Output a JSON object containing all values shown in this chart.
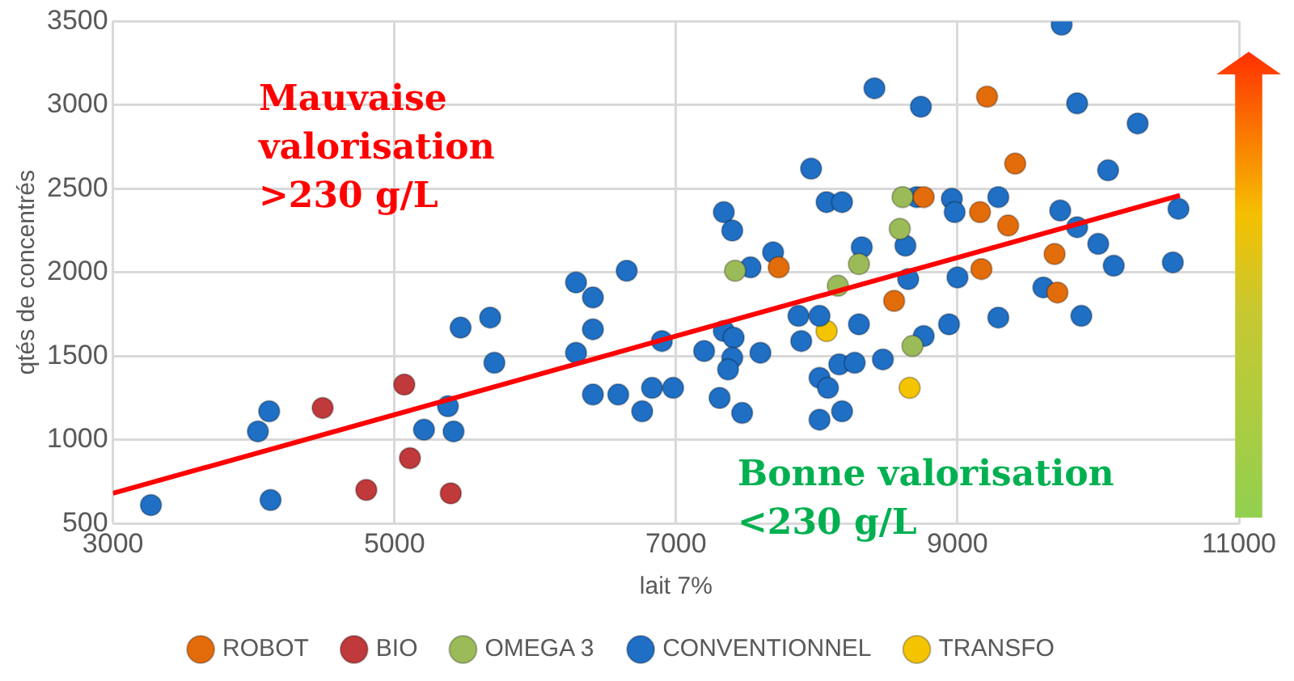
{
  "chart_data": {
    "type": "scatter",
    "xlabel": "lait 7%",
    "ylabel": "qtés de concentrés",
    "xlim": [
      3000,
      11000
    ],
    "xticks": [
      3000,
      5000,
      7000,
      9000,
      11000
    ],
    "ylim": [
      500,
      3500
    ],
    "yticks": [
      500,
      1000,
      1500,
      2000,
      2500,
      3000,
      3500
    ],
    "grid": true,
    "legend": "bottom",
    "marker": "circle",
    "annotations": [
      "Mauvaise\nvalorisation\n>230 g/L",
      "Bonne valorisation\n<230 g/L"
    ],
    "series": [
      {
        "name": "ROBOT",
        "color": "#e36c0a",
        "x": [
          9210,
          9410,
          8760,
          9160,
          9360,
          9690,
          9170,
          7730,
          8550,
          9710
        ],
        "values": [
          3050,
          2650,
          2450,
          2360,
          2280,
          2110,
          2020,
          2030,
          1830,
          1880
        ]
      },
      {
        "name": "BIO",
        "color": "#c0393b",
        "x": [
          4490,
          5070,
          5110,
          4800,
          5400
        ],
        "values": [
          1190,
          1330,
          890,
          700,
          680
        ]
      },
      {
        "name": "OMEGA 3",
        "color": "#9bbb59",
        "x": [
          8610,
          8590,
          7420,
          8300,
          8150,
          8680
        ],
        "values": [
          2450,
          2260,
          2010,
          2050,
          1920,
          1560
        ]
      },
      {
        "name": "CONVENTIONNEL",
        "color": "#1f6fc5",
        "x": [
          3270,
          4030,
          4110,
          4120,
          5470,
          5680,
          5710,
          5380,
          5210,
          5420,
          6290,
          6410,
          6410,
          6290,
          6410,
          9740,
          8410,
          8740,
          9850,
          10280,
          7960,
          10070,
          8070,
          8180,
          8710,
          8960,
          8980,
          9290,
          9730,
          9850,
          10000,
          10110,
          10570,
          10530,
          7340,
          7400,
          6650,
          7690,
          7530,
          8320,
          8630,
          8650,
          9000,
          9610,
          9880,
          9290,
          8940,
          8760,
          8300,
          7870,
          8020,
          7890,
          6900,
          7200,
          7340,
          7410,
          7400,
          7370,
          7600,
          8160,
          8270,
          8470,
          8020,
          8080,
          6590,
          6830,
          6980,
          6760,
          7310,
          7470,
          8020,
          8180
        ],
        "values": [
          610,
          1050,
          1170,
          640,
          1670,
          1730,
          1460,
          1200,
          1060,
          1050,
          1940,
          1850,
          1660,
          1520,
          1270,
          3480,
          3100,
          2990,
          3010,
          2890,
          2620,
          2610,
          2420,
          2420,
          2450,
          2440,
          2360,
          2450,
          2370,
          2270,
          2170,
          2040,
          2380,
          2060,
          2360,
          2250,
          2010,
          2120,
          2030,
          2150,
          2160,
          1960,
          1970,
          1910,
          1740,
          1730,
          1690,
          1620,
          1690,
          1740,
          1740,
          1590,
          1590,
          1530,
          1650,
          1610,
          1490,
          1420,
          1520,
          1450,
          1460,
          1480,
          1370,
          1310,
          1270,
          1310,
          1310,
          1170,
          1250,
          1160,
          1120,
          1170
        ]
      },
      {
        "name": "TRANSFO",
        "color": "#f5c400",
        "x": [
          8070,
          8660
        ],
        "values": [
          1650,
          1310
        ]
      },
      {
        "type": "line",
        "marker": "none",
        "color": "#ff0000",
        "x": [
          3000,
          10580
        ],
        "values": [
          680,
          2460
        ]
      }
    ]
  }
}
